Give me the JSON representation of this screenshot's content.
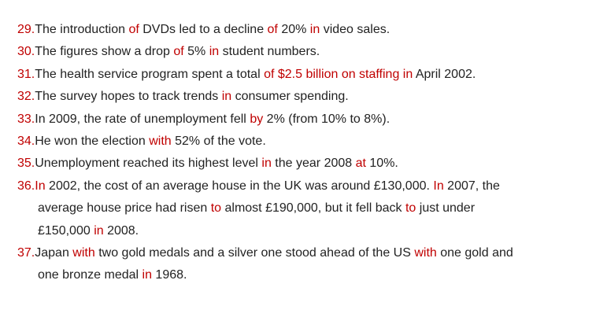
{
  "page": {
    "background": "#ffffff",
    "text_color": "#222222",
    "accent_color": "#c00000"
  },
  "list": {
    "items": [
      {
        "number": "29.",
        "segments": [
          {
            "text": "The introduction ",
            "highlight": false
          },
          {
            "text": "of",
            "highlight": true
          },
          {
            "text": " DVDs led to a decline ",
            "highlight": false
          },
          {
            "text": "of",
            "highlight": true
          },
          {
            "text": " 20% ",
            "highlight": false
          },
          {
            "text": "in",
            "highlight": true
          },
          {
            "text": " video sales.",
            "highlight": false
          }
        ]
      },
      {
        "number": "30.",
        "segments": [
          {
            "text": "The figures show a drop ",
            "highlight": false
          },
          {
            "text": "of",
            "highlight": true
          },
          {
            "text": " 5% ",
            "highlight": false
          },
          {
            "text": "in",
            "highlight": true
          },
          {
            "text": " student numbers.",
            "highlight": false
          }
        ]
      },
      {
        "number": "31.",
        "segments": [
          {
            "text": "The health service program spent a total ",
            "highlight": false
          },
          {
            "text": "of $2.5 billion on staffing ",
            "highlight": true
          },
          {
            "text": "in",
            "highlight": true
          },
          {
            "text": " April 2002.",
            "highlight": false
          }
        ]
      },
      {
        "number": "32.",
        "segments": [
          {
            "text": "The survey hopes to track trends ",
            "highlight": false
          },
          {
            "text": "in",
            "highlight": true
          },
          {
            "text": " consumer spending.",
            "highlight": false
          }
        ]
      },
      {
        "number": "33.",
        "segments": [
          {
            "text": "In 2009, the rate of unemployment fell ",
            "highlight": false
          },
          {
            "text": "by",
            "highlight": true
          },
          {
            "text": " 2% (from 10% to 8%).",
            "highlight": false
          }
        ]
      },
      {
        "number": "34.",
        "segments": [
          {
            "text": "He won the election ",
            "highlight": false
          },
          {
            "text": "with",
            "highlight": true
          },
          {
            "text": " 52% of the vote.",
            "highlight": false
          }
        ]
      },
      {
        "number": "35.",
        "segments": [
          {
            "text": "Unemployment reached its highest level ",
            "highlight": false
          },
          {
            "text": "in",
            "highlight": true
          },
          {
            "text": " the year 2008 ",
            "highlight": false
          },
          {
            "text": "at",
            "highlight": true
          },
          {
            "text": " 10%.",
            "highlight": false
          }
        ]
      },
      {
        "number": "36.",
        "segments": [
          {
            "text": "In",
            "highlight": true
          },
          {
            "text": " 2002, the cost of an average house in the UK was around £130,000. ",
            "highlight": false
          },
          {
            "text": "In",
            "highlight": true
          },
          {
            "text": " 2007, the\naverage house price had risen ",
            "highlight": false
          },
          {
            "text": "to",
            "highlight": true
          },
          {
            "text": " almost £190,000, but it fell back ",
            "highlight": false
          },
          {
            "text": "to",
            "highlight": true
          },
          {
            "text": " just under\n£150,000 ",
            "highlight": false
          },
          {
            "text": "in",
            "highlight": true
          },
          {
            "text": " 2008.",
            "highlight": false
          }
        ]
      },
      {
        "number": "37.",
        "segments": [
          {
            "text": "Japan ",
            "highlight": false
          },
          {
            "text": "with",
            "highlight": true
          },
          {
            "text": " two gold medals and a silver one stood ahead of the US ",
            "highlight": false
          },
          {
            "text": "with",
            "highlight": true
          },
          {
            "text": " one gold and\none bronze medal ",
            "highlight": false
          },
          {
            "text": "in",
            "highlight": true
          },
          {
            "text": " 1968.",
            "highlight": false
          }
        ]
      }
    ]
  }
}
